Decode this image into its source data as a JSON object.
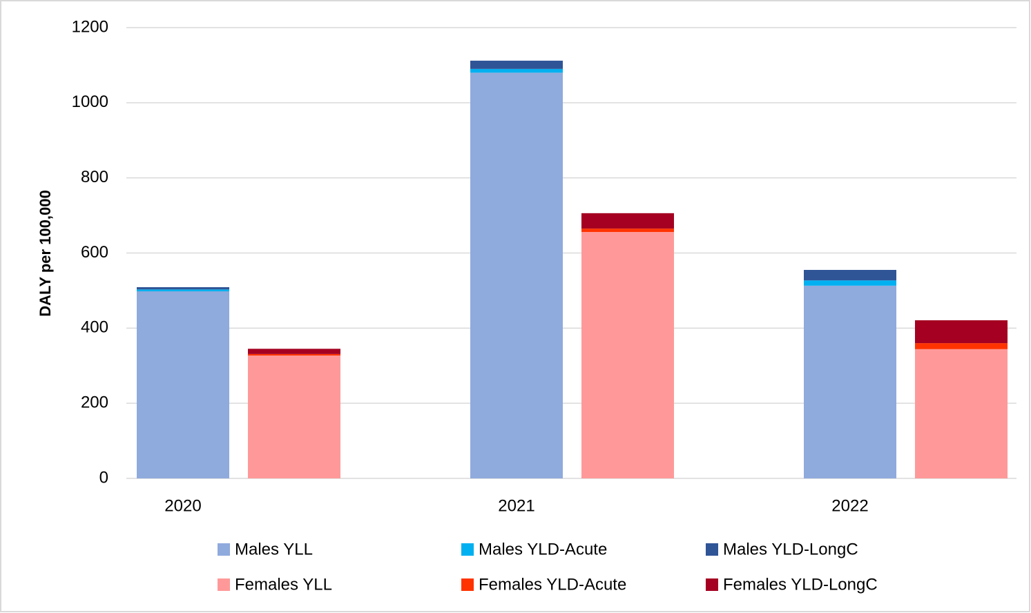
{
  "chart_data": {
    "type": "bar",
    "stacked": true,
    "y_label": "DALY per 100,000",
    "categories": [
      "2020",
      "2021",
      "2022"
    ],
    "series": [
      {
        "name": "Males YLL",
        "color": "#8faadc",
        "stack": 0,
        "values": [
          498,
          1080,
          513
        ]
      },
      {
        "name": "Males YLD-Acute",
        "color": "#00b0f0",
        "stack": 0,
        "values": [
          5,
          10,
          14
        ]
      },
      {
        "name": "Males YLD-LongC",
        "color": "#2f5597",
        "stack": 0,
        "values": [
          6,
          22,
          28
        ]
      },
      {
        "name": "Females YLL",
        "color": "#ff9999",
        "stack": 1,
        "values": [
          327,
          656,
          344
        ]
      },
      {
        "name": "Females YLD-Acute",
        "color": "#ff3300",
        "stack": 1,
        "values": [
          4,
          9,
          16
        ]
      },
      {
        "name": "Females YLD-LongC",
        "color": "#a50021",
        "stack": 1,
        "values": [
          14,
          41,
          61
        ]
      }
    ],
    "ylim": [
      0,
      1200
    ],
    "yticks": [
      0,
      200,
      400,
      600,
      800,
      1000,
      1200
    ],
    "grid": true
  }
}
